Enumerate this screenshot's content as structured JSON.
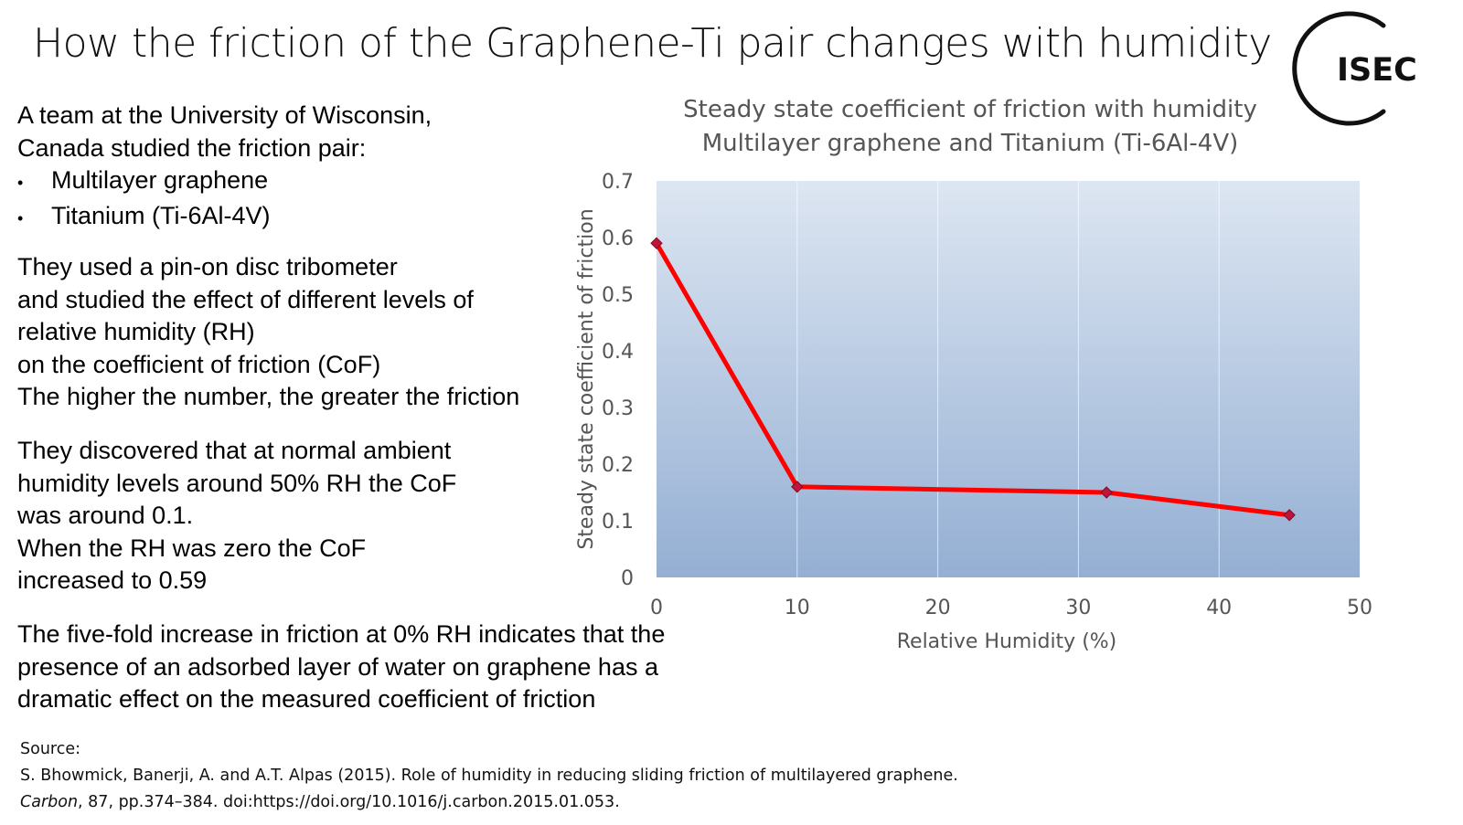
{
  "slide": {
    "title": "How the friction of the Graphene-Ti pair changes with humidity",
    "logo_text": "ISEC",
    "intro": [
      "A team at the University of Wisconsin,",
      "Canada studied the friction pair:"
    ],
    "bullets": [
      "Multilayer graphene",
      "Titanium (Ti-6Al-4V)"
    ],
    "method": [
      "They used a pin-on disc tribometer",
      "and studied the effect of different levels of",
      "relative humidity (RH)",
      "on the coefficient of friction  (CoF)",
      "The higher the number, the greater the friction"
    ],
    "findings": [
      "They discovered that at normal ambient",
      "humidity levels around 50% RH the CoF",
      "was around 0.1.",
      "When the RH was zero the CoF",
      "increased to 0.59"
    ],
    "conclusion": [
      "The five-fold increase in friction at 0% RH indicates that the",
      "presence of an adsorbed layer of water on graphene has a",
      "dramatic effect on the measured coefficient of friction"
    ],
    "source": {
      "label": "Source:",
      "citation": "S. Bhowmick, Banerji, A. and A.T. Alpas (2015). Role of humidity in reducing sliding friction of multilayered graphene.",
      "journal": "Carbon",
      "details": ", 87, pp.374–384. doi:https://doi.org/10.1016/j.carbon.2015.01.053."
    }
  },
  "chart_data": {
    "type": "line",
    "title": "Steady state coefficient of friction with humidity",
    "subtitle": "Multilayer graphene and Titanium (Ti-6Al-4V)",
    "xlabel": "Relative Humidity (%)",
    "ylabel": "Steady state coefficient of friction",
    "x": [
      0,
      10,
      32,
      45
    ],
    "series": [
      {
        "values": [
          0.59,
          0.16,
          0.15,
          0.11
        ]
      }
    ],
    "xlim": [
      0,
      50
    ],
    "ylim": [
      0,
      0.7
    ],
    "xticks": [
      0,
      10,
      20,
      30,
      40,
      50
    ],
    "yticks": [
      0,
      0.1,
      0.2,
      0.3,
      0.4,
      0.5,
      0.6,
      0.7
    ],
    "ytick_labels": [
      "0",
      "0.1",
      "0.2",
      "0.3",
      "0.4",
      "0.5",
      "0.6",
      "0.7"
    ],
    "grid": "vertical",
    "legend": "none",
    "colors": {
      "line": "#ff0000",
      "marker": "#c0143c",
      "plot_bg_top": "#dde6f2",
      "plot_bg_bottom": "#94afd3"
    }
  }
}
